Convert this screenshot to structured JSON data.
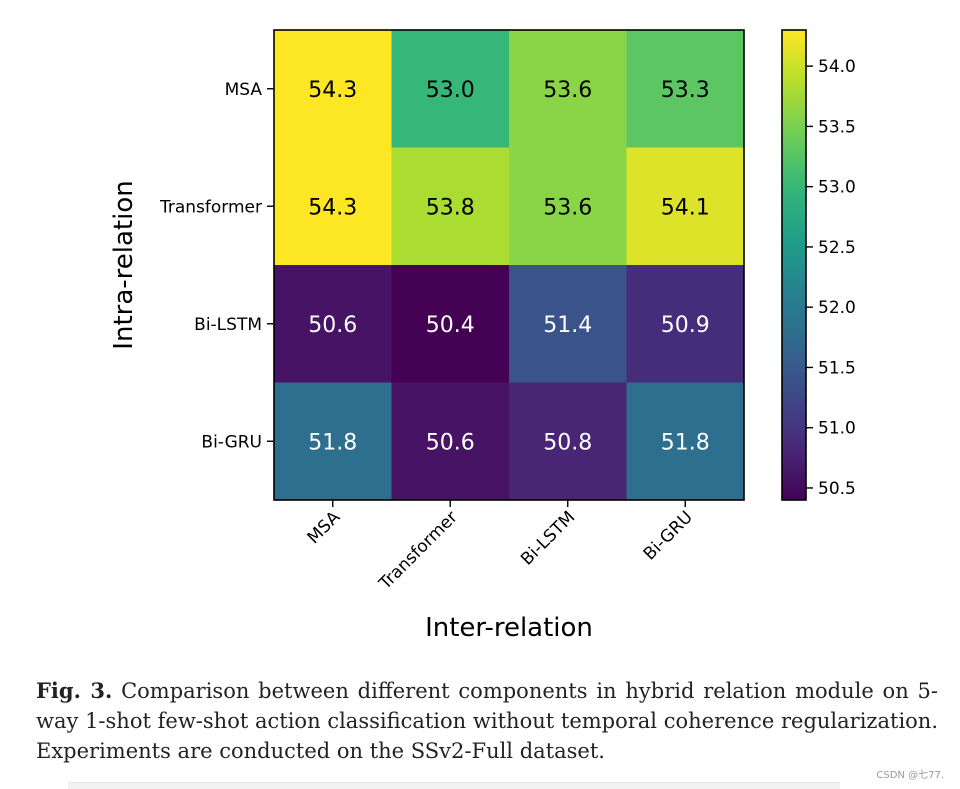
{
  "chart_data": {
    "type": "heatmap",
    "title": "",
    "xlabel": "Inter-relation",
    "ylabel": "Intra-relation",
    "x_categories": [
      "MSA",
      "Transformer",
      "Bi-LSTM",
      "Bi-GRU"
    ],
    "y_categories": [
      "MSA",
      "Transformer",
      "Bi-LSTM",
      "Bi-GRU"
    ],
    "values": [
      [
        54.3,
        53.0,
        53.6,
        53.3
      ],
      [
        54.3,
        53.8,
        53.6,
        54.1
      ],
      [
        50.6,
        50.4,
        51.4,
        50.9
      ],
      [
        51.8,
        50.6,
        50.8,
        51.8
      ]
    ],
    "value_labels": [
      [
        "54.3",
        "53.0",
        "53.6",
        "53.3"
      ],
      [
        "54.3",
        "53.8",
        "53.6",
        "54.1"
      ],
      [
        "50.6",
        "50.4",
        "51.4",
        "50.9"
      ],
      [
        "51.8",
        "50.6",
        "50.8",
        "51.8"
      ]
    ],
    "colormap": "viridis",
    "color_range": [
      50.4,
      54.3
    ],
    "colorbar_ticks": [
      54.0,
      53.5,
      53.0,
      52.5,
      52.0,
      51.5,
      51.0,
      50.5
    ],
    "colorbar_tick_labels": [
      "54.0",
      "53.5",
      "53.0",
      "52.5",
      "52.0",
      "51.5",
      "51.0",
      "50.5"
    ],
    "colors": {
      "viridis_stops": [
        "#440154",
        "#482878",
        "#3e4989",
        "#31688e",
        "#26828e",
        "#1f9e89",
        "#35b779",
        "#6ece58",
        "#b5de2b",
        "#fde725"
      ],
      "text_light": "#ffffff",
      "text_dark": "#000000"
    }
  },
  "caption": {
    "label": "Fig. 3.",
    "text": " Comparison between different components in hybrid relation module on 5-way 1-shot few-shot action classification without temporal coherence regularization. Experiments are conducted on the SSv2-Full dataset."
  },
  "watermark": "CSDN @七77."
}
